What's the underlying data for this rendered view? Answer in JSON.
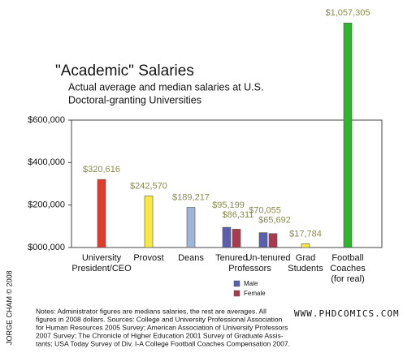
{
  "chart_data": {
    "type": "bar",
    "title": "\"Academic\" Salaries",
    "subtitle": [
      "Actual average and median salaries at U.S.",
      "Doctoral-granting Universities"
    ],
    "categories": [
      [
        "University",
        "President/CEO"
      ],
      [
        "Provost"
      ],
      [
        "Deans"
      ],
      [
        "Tenured"
      ],
      [
        "Un-tenured"
      ],
      [
        "Grad",
        "Students"
      ],
      [
        "Football",
        "Coaches",
        "(for real)"
      ]
    ],
    "group_label": "Professors",
    "values": [
      320616,
      242570,
      189217,
      null,
      null,
      17784,
      1057305
    ],
    "value_labels": [
      "$320,616",
      "$242,570",
      "$189,217",
      null,
      null,
      "$17,784",
      "$1,057,305"
    ],
    "colors": [
      "#e23b2b",
      "#f7e842",
      "#9db5d9",
      null,
      null,
      "#f7e842",
      "#2fb52f"
    ],
    "series": [
      {
        "name": "Male",
        "color": "#5a5eae",
        "values": [
          null,
          null,
          null,
          95199,
          70055,
          null,
          null
        ],
        "value_labels": [
          null,
          null,
          null,
          "$95,199",
          "$70,055",
          null,
          null
        ]
      },
      {
        "name": "Female",
        "color": "#a83b4e",
        "values": [
          null,
          null,
          null,
          86311,
          65692,
          null,
          null
        ],
        "value_labels": [
          null,
          null,
          null,
          "$86,311",
          "$65,692",
          null,
          null
        ]
      }
    ],
    "ylim": [
      0,
      600000
    ],
    "yticks": [
      {
        "value": 0,
        "label": "$000,000"
      },
      {
        "value": 200000,
        "label": "$200,000"
      },
      {
        "value": 400000,
        "label": "$400,000"
      },
      {
        "value": 600000,
        "label": "$600,000"
      }
    ],
    "notes": [
      "Notes: Administrator figures are medians salaries, the rest are averages. All",
      "figures in 2008 dollars. Sources: College and University Professional Association",
      "for Human Resources 2005 Survey; American Association of University Professors",
      "2007 Survey; The Chronicle of Higher Education 2001 Survey of Graduate Assis-",
      "tants; USA Today Survey of Div. I-A College Football Coaches Compensation 2007."
    ],
    "credit": "JORGE CHAM © 2008",
    "website": "WWW.PHDCOMICS.COM"
  }
}
